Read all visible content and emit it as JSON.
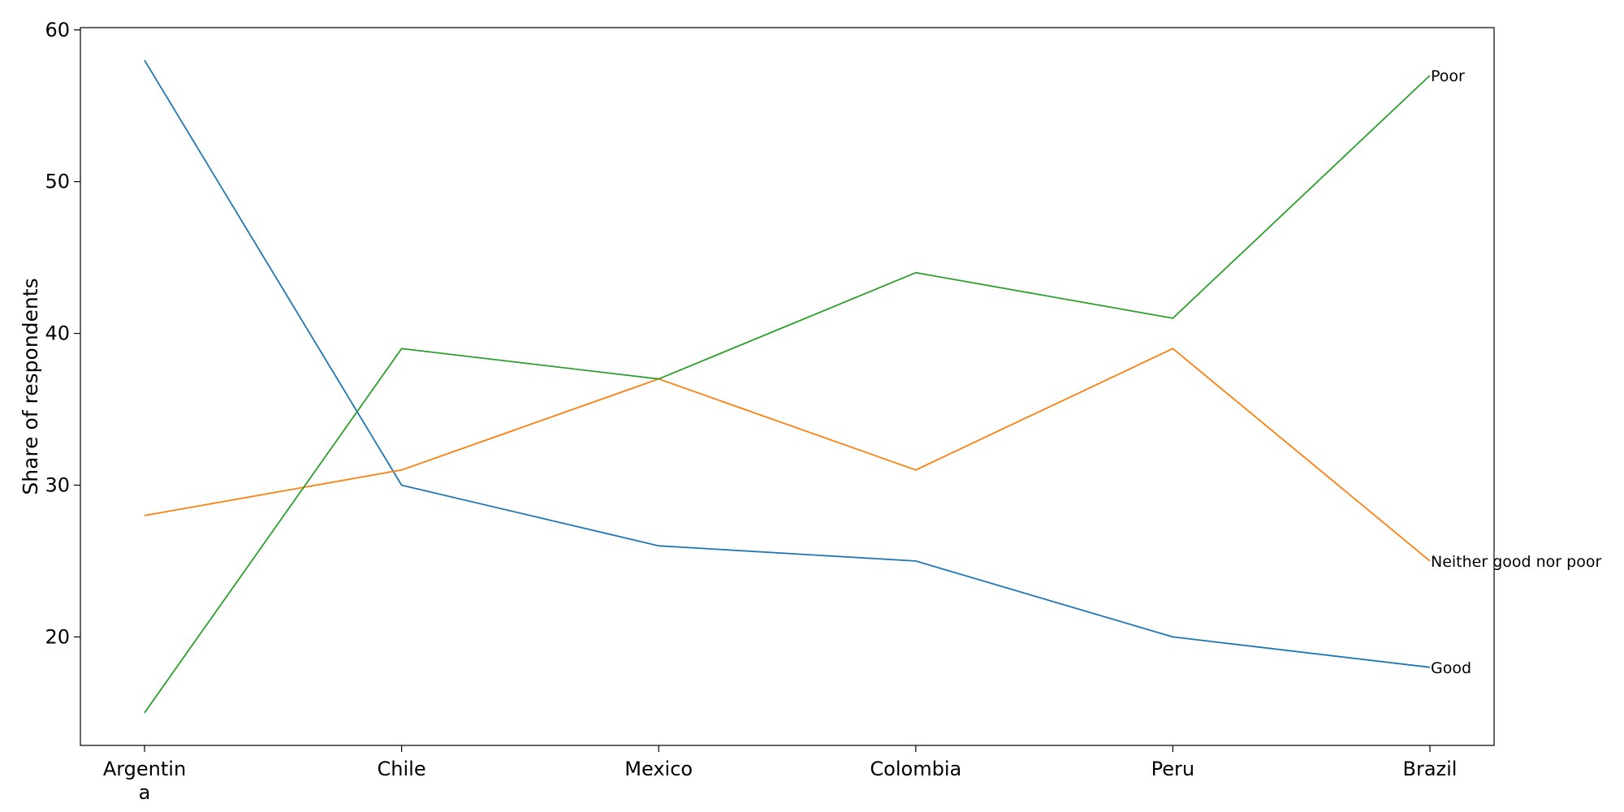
{
  "chart_data": {
    "type": "line",
    "categories": [
      "Argentina",
      "Chile",
      "Mexico",
      "Colombia",
      "Peru",
      "Brazil"
    ],
    "category_label_lines": [
      [
        "Argentin",
        "a"
      ],
      [
        "Chile"
      ],
      [
        "Mexico"
      ],
      [
        "Colombia"
      ],
      [
        "Peru"
      ],
      [
        "Brazil"
      ]
    ],
    "series": [
      {
        "name": "Good",
        "color": "#1f77b4",
        "values": [
          58,
          30,
          26,
          25,
          20,
          18
        ]
      },
      {
        "name": "Neither good nor poor",
        "color": "#ff7f0e",
        "values": [
          28,
          31,
          37,
          31,
          39,
          25
        ]
      },
      {
        "name": "Poor",
        "color": "#2ca02c",
        "values": [
          15,
          39,
          37,
          44,
          41,
          57
        ]
      }
    ],
    "title": "",
    "xlabel": "",
    "ylabel": "Share of respondents",
    "ylim": [
      12.85,
      60.15
    ],
    "yticks": [
      20,
      30,
      40,
      50,
      60
    ],
    "grid": false,
    "legend": "end-of-line labels"
  }
}
